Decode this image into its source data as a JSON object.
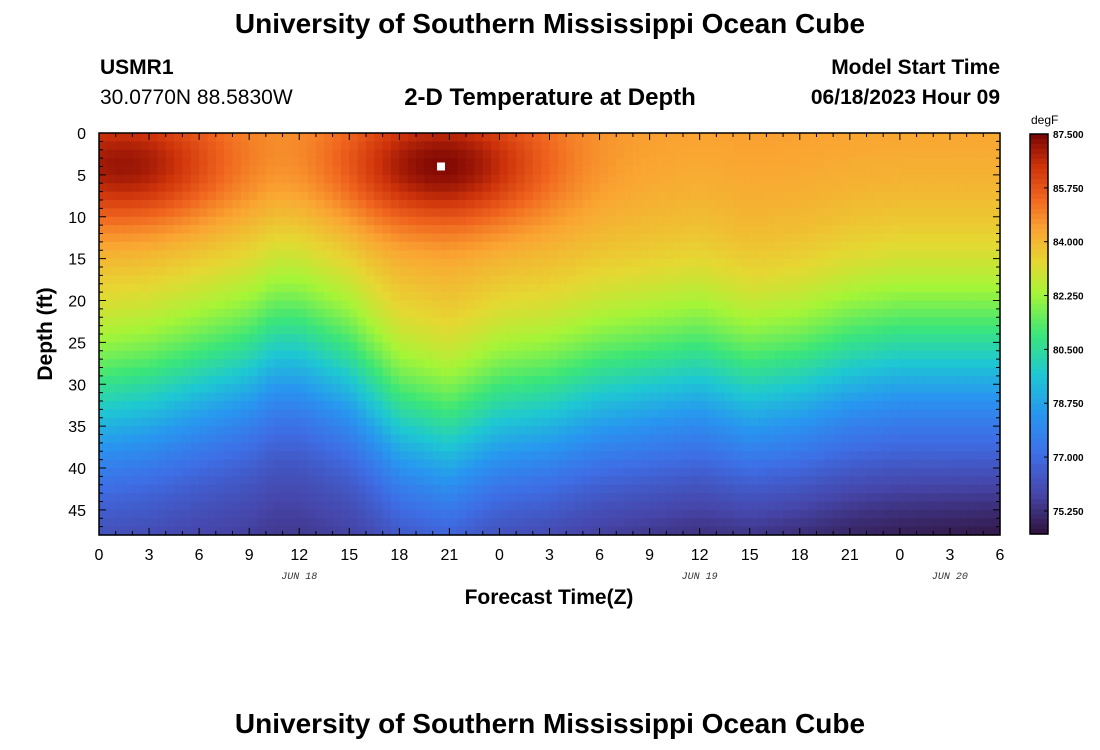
{
  "header": {
    "title": "University of Southern Mississippi Ocean Cube",
    "station_id": "USMR1",
    "station_coords": "30.0770N  88.5830W",
    "chart_title": "2-D Temperature at Depth",
    "model_label": "Model Start Time",
    "model_time": "06/18/2023 Hour 09"
  },
  "footer": {
    "title": "University of Southern Mississippi Ocean Cube"
  },
  "chart_data": {
    "type": "heatmap",
    "title": "2-D Temperature at Depth",
    "xlabel": "Forecast Time(Z)",
    "ylabel": "Depth (ft)",
    "x_range_hours": [
      0,
      54
    ],
    "y_range_ft": [
      0,
      48
    ],
    "x_ticks": [
      {
        "hour": 0,
        "label": "0"
      },
      {
        "hour": 3,
        "label": "3"
      },
      {
        "hour": 6,
        "label": "6"
      },
      {
        "hour": 9,
        "label": "9"
      },
      {
        "hour": 12,
        "label": "12"
      },
      {
        "hour": 15,
        "label": "15"
      },
      {
        "hour": 18,
        "label": "18"
      },
      {
        "hour": 21,
        "label": "21"
      },
      {
        "hour": 24,
        "label": "0"
      },
      {
        "hour": 27,
        "label": "3"
      },
      {
        "hour": 30,
        "label": "6"
      },
      {
        "hour": 33,
        "label": "9"
      },
      {
        "hour": 36,
        "label": "12"
      },
      {
        "hour": 39,
        "label": "15"
      },
      {
        "hour": 42,
        "label": "18"
      },
      {
        "hour": 45,
        "label": "21"
      },
      {
        "hour": 48,
        "label": "0"
      },
      {
        "hour": 51,
        "label": "3"
      },
      {
        "hour": 54,
        "label": "6"
      }
    ],
    "date_labels": [
      {
        "hour": 12,
        "label": "JUN 18"
      },
      {
        "hour": 36,
        "label": "JUN 19"
      },
      {
        "hour": 51,
        "label": "JUN 20"
      }
    ],
    "y_ticks": [
      0,
      5,
      10,
      15,
      20,
      25,
      30,
      35,
      40,
      45
    ],
    "colorbar": {
      "units": "degF",
      "min": 74.5,
      "max": 87.5,
      "labels": [
        "87.500",
        "85.750",
        "84.000",
        "82.250",
        "80.500",
        "78.750",
        "77.000",
        "75.250"
      ],
      "label_values": [
        87.5,
        85.75,
        84.0,
        82.25,
        80.5,
        78.75,
        77.0,
        75.25
      ]
    },
    "marker": {
      "hour": 20.5,
      "depth_ft": 4
    },
    "thermocline_profile": {
      "hours": [
        0,
        3,
        6,
        9,
        10.5,
        12,
        15,
        18,
        21,
        24,
        27,
        30,
        33,
        36,
        39,
        42,
        45,
        48,
        51,
        54
      ],
      "depth_ft": [
        33,
        32,
        30,
        28,
        26,
        26,
        29,
        35,
        37,
        34,
        33,
        31,
        30,
        29,
        31,
        30,
        28,
        27,
        27,
        27
      ]
    },
    "surface_peaks": [
      {
        "hour": 1.5,
        "depth_ft": 4,
        "temp_f": 87.3
      },
      {
        "hour": 20.5,
        "depth_ft": 4,
        "temp_f": 87.5
      }
    ]
  }
}
